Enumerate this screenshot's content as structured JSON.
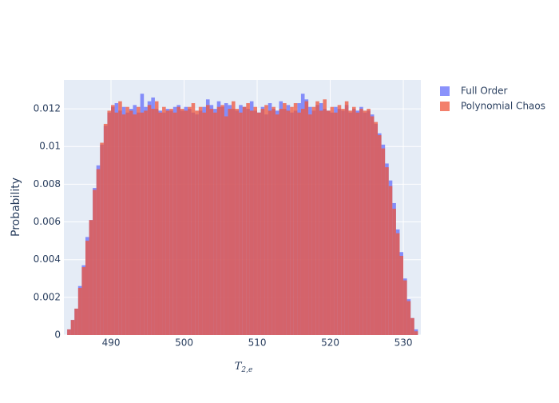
{
  "chart_data": {
    "type": "histogram",
    "xlabel": "T",
    "xlabel_sub": "2,e",
    "ylabel": "Probability",
    "bins": [
      484,
      484.5,
      485,
      485.5,
      486,
      486.5,
      487,
      487.5,
      488,
      488.5,
      489,
      489.5,
      490,
      490.5,
      491,
      491.5,
      492,
      492.5,
      493,
      493.5,
      494,
      494.5,
      495,
      495.5,
      496,
      496.5,
      497,
      497.5,
      498,
      498.5,
      499,
      499.5,
      500,
      500.5,
      501,
      501.5,
      502,
      502.5,
      503,
      503.5,
      504,
      504.5,
      505,
      505.5,
      506,
      506.5,
      507,
      507.5,
      508,
      508.5,
      509,
      509.5,
      510,
      510.5,
      511,
      511.5,
      512,
      512.5,
      513,
      513.5,
      514,
      514.5,
      515,
      515.5,
      516,
      516.5,
      517,
      517.5,
      518,
      518.5,
      519,
      519.5,
      520,
      520.5,
      521,
      521.5,
      522,
      522.5,
      523,
      523.5,
      524,
      524.5,
      525,
      525.5,
      526,
      526.5,
      527,
      527.5,
      528,
      528.5,
      529,
      529.5,
      530,
      530.5,
      531,
      531.5,
      532
    ],
    "series": [
      {
        "name": "Full Order",
        "color": "#636efa",
        "values": [
          0.0003,
          0.0008,
          0.0014,
          0.0026,
          0.0037,
          0.0052,
          0.0061,
          0.0078,
          0.009,
          0.0101,
          0.0111,
          0.0118,
          0.0121,
          0.0123,
          0.0119,
          0.0121,
          0.0118,
          0.012,
          0.0122,
          0.0118,
          0.0128,
          0.0121,
          0.0124,
          0.0126,
          0.012,
          0.0119,
          0.0118,
          0.012,
          0.0119,
          0.0121,
          0.0122,
          0.0119,
          0.0121,
          0.012,
          0.0118,
          0.0117,
          0.0119,
          0.0121,
          0.0125,
          0.0122,
          0.012,
          0.0124,
          0.0121,
          0.0123,
          0.0122,
          0.012,
          0.0119,
          0.0122,
          0.0121,
          0.012,
          0.0124,
          0.0119,
          0.0118,
          0.0121,
          0.0117,
          0.0123,
          0.012,
          0.0119,
          0.0124,
          0.012,
          0.0122,
          0.0118,
          0.0119,
          0.0123,
          0.0128,
          0.0125,
          0.0121,
          0.0119,
          0.0122,
          0.0123,
          0.012,
          0.0119,
          0.0118,
          0.0121,
          0.012,
          0.0119,
          0.0122,
          0.0118,
          0.012,
          0.0119,
          0.0121,
          0.0118,
          0.0119,
          0.0117,
          0.0112,
          0.0107,
          0.0101,
          0.0091,
          0.0082,
          0.007,
          0.0056,
          0.0044,
          0.003,
          0.0019,
          0.0009,
          0.0003
        ]
      },
      {
        "name": "Polynomial Chaos",
        "color": "#EF553B",
        "values": [
          0.0003,
          0.0008,
          0.0014,
          0.0025,
          0.0036,
          0.005,
          0.0061,
          0.0077,
          0.0088,
          0.0102,
          0.0112,
          0.0119,
          0.0122,
          0.0118,
          0.0124,
          0.0117,
          0.0121,
          0.0119,
          0.0117,
          0.0121,
          0.0118,
          0.0119,
          0.0122,
          0.012,
          0.0124,
          0.0118,
          0.0121,
          0.0119,
          0.012,
          0.0118,
          0.0121,
          0.012,
          0.0119,
          0.0121,
          0.0123,
          0.0119,
          0.0121,
          0.0118,
          0.0122,
          0.012,
          0.0118,
          0.0121,
          0.0122,
          0.0116,
          0.012,
          0.0124,
          0.012,
          0.0118,
          0.0121,
          0.0123,
          0.0119,
          0.0121,
          0.0118,
          0.012,
          0.0122,
          0.0119,
          0.0121,
          0.0117,
          0.012,
          0.0123,
          0.0119,
          0.0121,
          0.0123,
          0.0118,
          0.012,
          0.0124,
          0.0117,
          0.0121,
          0.0124,
          0.0119,
          0.0125,
          0.0119,
          0.0121,
          0.0118,
          0.0122,
          0.012,
          0.0124,
          0.0119,
          0.0121,
          0.0118,
          0.012,
          0.0119,
          0.012,
          0.0116,
          0.0113,
          0.0106,
          0.0099,
          0.0089,
          0.0079,
          0.0067,
          0.0054,
          0.0042,
          0.0029,
          0.0018,
          0.0009,
          0.0002
        ]
      }
    ],
    "opacity": 0.75,
    "xlim": [
      483.55,
      532.4
    ],
    "xticks": [
      490,
      500,
      510,
      520,
      530
    ],
    "ylim": [
      0,
      0.01353
    ],
    "yticks": [
      0,
      0.002,
      0.004,
      0.006,
      0.008,
      0.01,
      0.012
    ],
    "grid": true,
    "legend": "right"
  }
}
